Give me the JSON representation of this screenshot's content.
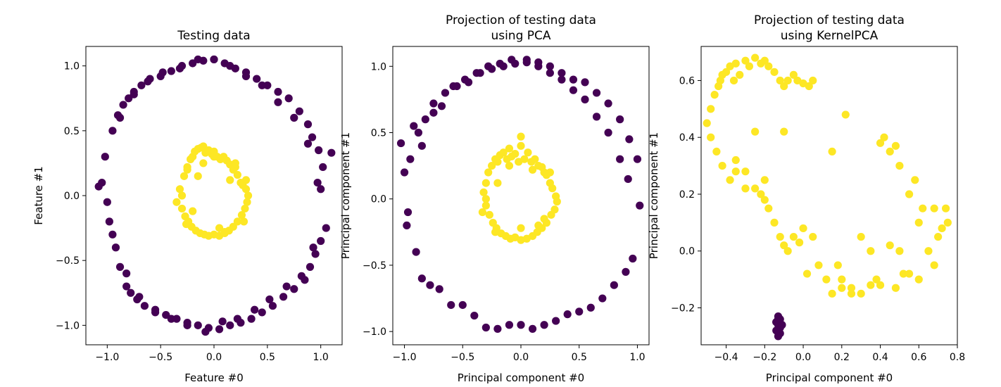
{
  "colors": {
    "class_outer": "#440154",
    "class_inner": "#fde725",
    "axes": "#000000"
  },
  "chart_data": [
    {
      "type": "scatter",
      "title": [
        "Testing data"
      ],
      "xlabel": "Feature #0",
      "ylabel": "Feature #1",
      "xlim": [
        -1.2,
        1.2
      ],
      "ylim": [
        -1.15,
        1.15
      ],
      "xticks": [
        -1.0,
        -0.5,
        0.0,
        0.5,
        1.0
      ],
      "xtick_labels": [
        "−1.0",
        "−0.5",
        "0.0",
        "0.5",
        "1.0"
      ],
      "yticks": [
        -1.0,
        -0.5,
        0.0,
        0.5,
        1.0
      ],
      "ytick_labels": [
        "−1.0",
        "−0.5",
        "0.0",
        "0.5",
        "1.0"
      ],
      "series": [
        {
          "class": "outer",
          "color": "#440154",
          "x": [
            -1.08,
            -1.02,
            -0.98,
            -0.95,
            -0.92,
            -0.9,
            -0.88,
            -0.85,
            -0.82,
            -0.8,
            -0.78,
            -0.75,
            -0.72,
            -0.68,
            -0.65,
            -0.6,
            -0.55,
            -0.5,
            -0.45,
            -0.4,
            -0.35,
            -0.3,
            -0.25,
            -0.2,
            -0.15,
            -0.1,
            -0.05,
            0.0,
            0.05,
            0.1,
            0.15,
            0.2,
            0.25,
            0.3,
            0.35,
            0.4,
            0.45,
            0.5,
            0.55,
            0.6,
            0.65,
            0.7,
            0.75,
            0.8,
            0.85,
            0.88,
            0.9,
            0.92,
            0.95,
            0.98,
            1.0,
            1.02,
            1.05,
            1.1,
            -1.05,
            -1.0,
            -0.95,
            -0.88,
            -0.82,
            -0.75,
            -0.7,
            -0.62,
            -0.55,
            -0.48,
            -0.4,
            -0.32,
            -0.25,
            -0.15,
            -0.08,
            0.0,
            0.08,
            0.15,
            0.22,
            0.3,
            0.38,
            0.45,
            0.52,
            0.6,
            0.68,
            0.75,
            0.82,
            0.88,
            0.93,
            0.97,
            1.0
          ],
          "y": [
            0.07,
            0.3,
            -0.2,
            0.5,
            -0.4,
            0.62,
            -0.55,
            0.7,
            -0.7,
            0.75,
            -0.75,
            0.8,
            -0.8,
            0.85,
            -0.85,
            0.9,
            -0.88,
            0.92,
            -0.92,
            0.96,
            -0.95,
            1.0,
            -0.98,
            1.02,
            -1.0,
            1.04,
            -1.02,
            1.05,
            -1.03,
            1.02,
            -1.0,
            0.98,
            -0.98,
            0.95,
            -0.95,
            0.9,
            -0.9,
            0.85,
            -0.85,
            0.8,
            -0.78,
            0.75,
            -0.72,
            0.65,
            -0.65,
            0.55,
            -0.55,
            0.45,
            -0.45,
            0.35,
            -0.35,
            0.22,
            -0.25,
            0.33,
            0.1,
            -0.05,
            -0.3,
            0.6,
            -0.6,
            0.78,
            -0.78,
            0.88,
            -0.9,
            0.95,
            -0.95,
            0.98,
            -1.0,
            1.05,
            -1.05,
            1.05,
            -0.97,
            1.0,
            -0.95,
            0.92,
            -0.88,
            0.85,
            -0.8,
            0.72,
            -0.7,
            0.6,
            -0.62,
            0.4,
            -0.4,
            0.1,
            0.05
          ]
        },
        {
          "class": "inner",
          "color": "#fde725",
          "x": [
            -0.3,
            -0.28,
            -0.25,
            -0.22,
            -0.2,
            -0.18,
            -0.15,
            -0.12,
            -0.1,
            -0.08,
            -0.05,
            -0.02,
            0.0,
            0.03,
            0.06,
            0.09,
            0.12,
            0.15,
            0.18,
            0.2,
            0.22,
            0.25,
            0.27,
            0.3,
            0.32,
            -0.3,
            -0.27,
            -0.24,
            -0.21,
            -0.17,
            -0.13,
            -0.09,
            -0.05,
            0.0,
            0.05,
            0.1,
            0.14,
            0.18,
            0.22,
            0.26,
            0.29,
            0.31,
            -0.35,
            -0.32,
            -0.26,
            -0.1,
            0.0,
            0.1,
            0.2,
            0.28,
            -0.2,
            0.15,
            -0.15,
            0.05,
            0.3,
            -0.25
          ],
          "y": [
            0.0,
            0.15,
            0.22,
            0.28,
            0.3,
            0.34,
            0.36,
            0.37,
            0.38,
            0.33,
            0.35,
            0.32,
            0.34,
            0.3,
            0.28,
            0.3,
            0.27,
            0.24,
            0.2,
            0.22,
            0.16,
            0.1,
            0.08,
            0.05,
            0.0,
            -0.1,
            -0.16,
            -0.2,
            -0.24,
            -0.27,
            -0.29,
            -0.3,
            -0.31,
            -0.3,
            -0.31,
            -0.29,
            -0.27,
            -0.24,
            -0.2,
            -0.15,
            -0.1,
            -0.05,
            -0.05,
            0.05,
            -0.22,
            0.25,
            0.3,
            -0.28,
            0.25,
            -0.2,
            -0.12,
            0.12,
            0.15,
            -0.25,
            0.12,
            0.2
          ]
        }
      ]
    },
    {
      "type": "scatter",
      "title": [
        "Projection of testing data",
        "using PCA"
      ],
      "xlabel": "Principal component #0",
      "ylabel": "Principal component #1",
      "xlim": [
        -1.1,
        1.1
      ],
      "ylim": [
        -1.1,
        1.15
      ],
      "xticks": [
        -1.0,
        -0.5,
        0.0,
        0.5,
        1.0
      ],
      "xtick_labels": [
        "−1.0",
        "−0.5",
        "0.0",
        "0.5",
        "1.0"
      ],
      "yticks": [
        -1.0,
        -0.5,
        0.0,
        0.5,
        1.0
      ],
      "ytick_labels": [
        "−1.0",
        "−0.5",
        "0.0",
        "0.5",
        "1.0"
      ],
      "series": [
        {
          "class": "outer",
          "color": "#440154",
          "x": [
            -1.03,
            -1.0,
            -0.97,
            -0.95,
            -0.9,
            -0.88,
            -0.85,
            -0.82,
            -0.78,
            -0.75,
            -0.7,
            -0.65,
            -0.6,
            -0.55,
            -0.5,
            -0.45,
            -0.4,
            -0.35,
            -0.3,
            -0.25,
            -0.2,
            -0.15,
            -0.1,
            -0.05,
            0.0,
            0.05,
            0.1,
            0.15,
            0.2,
            0.25,
            0.3,
            0.35,
            0.4,
            0.45,
            0.5,
            0.55,
            0.6,
            0.65,
            0.7,
            0.75,
            0.8,
            0.85,
            0.9,
            0.93,
            0.96,
            1.0,
            1.02,
            -0.98,
            -0.92,
            -0.85,
            -0.75,
            -0.68,
            -0.58,
            -0.48,
            -0.38,
            -0.28,
            -0.18,
            -0.08,
            0.05,
            0.15,
            0.25,
            0.35,
            0.45,
            0.55,
            0.65,
            0.75,
            0.85,
            0.92
          ],
          "y": [
            0.42,
            0.2,
            -0.1,
            0.3,
            -0.4,
            0.5,
            -0.6,
            0.6,
            -0.65,
            0.72,
            -0.68,
            0.8,
            -0.8,
            0.85,
            -0.8,
            0.88,
            -0.88,
            0.95,
            -0.97,
            0.98,
            -0.98,
            1.0,
            -0.95,
            1.02,
            -0.95,
            1.05,
            -0.98,
            1.03,
            -0.95,
            1.0,
            -0.92,
            0.95,
            -0.87,
            0.9,
            -0.85,
            0.88,
            -0.82,
            0.8,
            -0.75,
            0.72,
            -0.65,
            0.6,
            -0.55,
            0.45,
            -0.45,
            0.3,
            -0.05,
            -0.2,
            0.55,
            0.4,
            0.65,
            0.7,
            0.85,
            0.9,
            0.95,
            1.0,
            1.02,
            1.05,
            1.03,
            1.0,
            0.95,
            0.9,
            0.82,
            0.75,
            0.62,
            0.5,
            0.3,
            0.15
          ]
        },
        {
          "class": "inner",
          "color": "#fde725",
          "x": [
            -0.32,
            -0.3,
            -0.28,
            -0.25,
            -0.22,
            -0.2,
            -0.18,
            -0.15,
            -0.12,
            -0.1,
            -0.08,
            -0.05,
            -0.02,
            0.0,
            0.03,
            0.06,
            0.09,
            0.12,
            0.15,
            0.18,
            0.2,
            0.22,
            0.25,
            0.27,
            0.3,
            -0.3,
            -0.27,
            -0.24,
            -0.21,
            -0.17,
            -0.13,
            -0.09,
            -0.05,
            0.0,
            0.05,
            0.1,
            0.14,
            0.18,
            0.22,
            0.26,
            0.29,
            0.31,
            -0.33,
            -0.3,
            -0.22,
            -0.1,
            0.0,
            0.1,
            0.2,
            0.25,
            0.0,
            -0.2,
            0.15
          ],
          "y": [
            0.05,
            0.12,
            0.2,
            0.25,
            0.3,
            0.28,
            0.33,
            0.35,
            0.3,
            0.38,
            0.32,
            0.34,
            0.28,
            0.47,
            0.3,
            0.35,
            0.28,
            0.3,
            0.25,
            0.24,
            0.2,
            0.18,
            0.12,
            0.08,
            0.02,
            -0.05,
            -0.12,
            -0.18,
            -0.22,
            -0.26,
            -0.28,
            -0.3,
            -0.29,
            -0.31,
            -0.3,
            -0.28,
            -0.25,
            -0.22,
            -0.18,
            -0.12,
            -0.08,
            -0.02,
            -0.1,
            0.0,
            -0.25,
            0.25,
            -0.22,
            0.22,
            -0.15,
            0.2,
            0.4,
            0.12,
            -0.2
          ]
        }
      ]
    },
    {
      "type": "scatter",
      "title": [
        "Projection of testing data",
        "using KernelPCA"
      ],
      "xlabel": "Principal component #0",
      "ylabel": "Principal component #1",
      "xlim": [
        -0.53,
        0.8
      ],
      "ylim": [
        -0.33,
        0.72
      ],
      "xticks": [
        -0.4,
        -0.2,
        0.0,
        0.2,
        0.4,
        0.6,
        0.8
      ],
      "xtick_labels": [
        "−0.4",
        "−0.2",
        "0.0",
        "0.2",
        "0.4",
        "0.6",
        "0.8"
      ],
      "yticks": [
        -0.2,
        0.0,
        0.2,
        0.4,
        0.6
      ],
      "ytick_labels": [
        "−0.2",
        "0.0",
        "0.2",
        "0.4",
        "0.6"
      ],
      "series": [
        {
          "class": "outer",
          "color": "#440154",
          "x": [
            -0.13,
            -0.12,
            -0.14,
            -0.13,
            -0.12,
            -0.13,
            -0.14,
            -0.12,
            -0.13,
            -0.11,
            -0.14,
            -0.13
          ],
          "y": [
            -0.23,
            -0.24,
            -0.25,
            -0.26,
            -0.27,
            -0.28,
            -0.25,
            -0.29,
            -0.3,
            -0.26,
            -0.28,
            -0.24
          ]
        },
        {
          "class": "inner",
          "color": "#fde725",
          "x": [
            -0.5,
            -0.48,
            -0.46,
            -0.44,
            -0.43,
            -0.42,
            -0.4,
            -0.38,
            -0.36,
            -0.35,
            -0.33,
            -0.3,
            -0.28,
            -0.25,
            -0.22,
            -0.2,
            -0.18,
            -0.15,
            -0.12,
            -0.1,
            -0.08,
            -0.05,
            -0.03,
            0.0,
            0.03,
            0.05,
            -0.48,
            -0.45,
            -0.42,
            -0.38,
            -0.35,
            -0.3,
            -0.25,
            -0.22,
            -0.2,
            -0.18,
            -0.15,
            -0.12,
            -0.1,
            -0.08,
            -0.05,
            -0.02,
            0.0,
            0.02,
            0.05,
            0.08,
            0.12,
            0.15,
            0.18,
            0.2,
            0.22,
            0.25,
            0.3,
            0.35,
            0.38,
            0.4,
            0.42,
            0.45,
            0.48,
            0.5,
            0.52,
            0.55,
            0.58,
            0.6,
            0.62,
            0.65,
            0.68,
            0.7,
            0.72,
            0.74,
            0.75,
            0.68,
            0.6,
            0.55,
            0.5,
            0.45,
            0.4,
            0.35,
            0.3,
            0.25,
            0.2,
            0.15,
            -0.35,
            -0.3,
            -0.2,
            -0.1,
            -0.25,
            0.48
          ],
          "y": [
            0.45,
            0.5,
            0.55,
            0.58,
            0.6,
            0.62,
            0.63,
            0.65,
            0.6,
            0.66,
            0.62,
            0.67,
            0.65,
            0.68,
            0.66,
            0.67,
            0.65,
            0.63,
            0.6,
            0.58,
            0.6,
            0.62,
            0.6,
            0.59,
            0.58,
            0.6,
            0.4,
            0.35,
            0.3,
            0.25,
            0.28,
            0.22,
            0.22,
            0.2,
            0.25,
            0.15,
            0.1,
            0.05,
            0.02,
            0.0,
            0.05,
            0.03,
            0.08,
            -0.08,
            0.05,
            -0.05,
            -0.1,
            -0.15,
            -0.05,
            -0.1,
            0.48,
            -0.13,
            -0.15,
            -0.12,
            -0.1,
            0.38,
            0.4,
            0.35,
            0.37,
            0.3,
            -0.08,
            0.2,
            0.25,
            0.1,
            0.15,
            0.0,
            -0.05,
            0.05,
            0.08,
            0.15,
            0.1,
            0.15,
            -0.1,
            -0.08,
            0.0,
            0.02,
            -0.12,
            0.0,
            0.05,
            -0.15,
            -0.13,
            0.35,
            0.32,
            0.28,
            0.18,
            0.42,
            0.42,
            -0.13
          ]
        }
      ]
    }
  ]
}
